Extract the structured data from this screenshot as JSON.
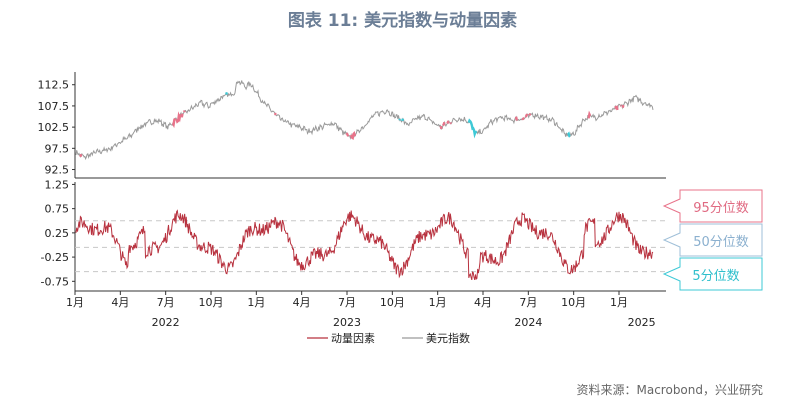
{
  "title": "图表 11: 美元指数与动量因素",
  "source": "资料来源：Macrobond，兴业研究",
  "colors": {
    "title": "#6b7e96",
    "dxy_line": "#9a9a9a",
    "momentum_line": "#b8323f",
    "high_band": "#e8738a",
    "low_band": "#3ec9d6",
    "mid_band": "#9fbfd8"
  },
  "chart_data": [
    {
      "type": "line",
      "series": [
        {
          "name": "美元指数"
        }
      ],
      "ylim": [
        90.5,
        115.5
      ],
      "yticks": [
        "112.5",
        "107.5",
        "102.5",
        "97.5",
        "92.5"
      ],
      "anchors": [
        [
          0,
          96.5
        ],
        [
          0.02,
          95.4
        ],
        [
          0.05,
          96.6
        ],
        [
          0.08,
          97.3
        ],
        [
          0.1,
          98.6
        ],
        [
          0.13,
          100.3
        ],
        [
          0.15,
          102.3
        ],
        [
          0.18,
          103.8
        ],
        [
          0.2,
          104.0
        ],
        [
          0.22,
          102.5
        ],
        [
          0.25,
          105.0
        ],
        [
          0.28,
          107.0
        ],
        [
          0.3,
          108.2
        ],
        [
          0.32,
          107.5
        ],
        [
          0.35,
          109.5
        ],
        [
          0.38,
          110.5
        ],
        [
          0.39,
          113.5
        ],
        [
          0.41,
          112.0
        ],
        [
          0.42,
          112.8
        ],
        [
          0.45,
          108.5
        ],
        [
          0.47,
          106.5
        ],
        [
          0.49,
          104.5
        ],
        [
          0.52,
          103.0
        ],
        [
          0.54,
          102.5
        ],
        [
          0.56,
          101.5
        ],
        [
          0.59,
          102.5
        ],
        [
          0.62,
          103.5
        ],
        [
          0.64,
          101.5
        ],
        [
          0.66,
          100.0
        ],
        [
          0.68,
          101.5
        ],
        [
          0.7,
          103.5
        ],
        [
          0.72,
          105.5
        ],
        [
          0.75,
          106.5
        ],
        [
          0.76,
          105.5
        ],
        [
          0.78,
          104.5
        ],
        [
          0.8,
          103.0
        ],
        [
          0.82,
          104.5
        ],
        [
          0.84,
          105.0
        ],
        [
          0.86,
          103.5
        ],
        [
          0.88,
          102.5
        ],
        [
          0.9,
          103.8
        ],
        [
          0.92,
          104.5
        ],
        [
          0.94,
          104.2
        ],
        [
          0.95,
          103.5
        ],
        [
          0.96,
          101.0
        ],
        [
          0.98,
          101.5
        ],
        [
          1.0,
          103.8
        ]
      ],
      "tail": [
        [
          0,
          103.8
        ],
        [
          0.1,
          104.8
        ],
        [
          0.2,
          104.2
        ],
        [
          0.3,
          104.5
        ],
        [
          0.4,
          105.5
        ],
        [
          0.5,
          104.8
        ],
        [
          0.6,
          104.0
        ],
        [
          0.65,
          102.5
        ],
        [
          0.7,
          101.0
        ],
        [
          0.75,
          100.5
        ],
        [
          0.8,
          101.0
        ],
        [
          0.85,
          103.0
        ],
        [
          0.9,
          104.5
        ],
        [
          0.95,
          105.0
        ],
        [
          1.0,
          104.8
        ]
      ],
      "tail2": [
        [
          0,
          104.8
        ],
        [
          0.3,
          106.5
        ],
        [
          0.5,
          107.8
        ],
        [
          0.7,
          109.5
        ],
        [
          0.8,
          108.5
        ],
        [
          0.9,
          108.0
        ],
        [
          1.0,
          107.2
        ]
      ]
    },
    {
      "type": "line",
      "series": [
        {
          "name": "动量因素"
        }
      ],
      "ylim": [
        -0.95,
        1.3
      ],
      "yticks": [
        "1.25",
        "0.75",
        "0.25",
        "-0.25",
        "-0.75"
      ],
      "percentile_lines": {
        "p95": 0.5,
        "p50": -0.05,
        "p5": -0.55
      },
      "band_labels": [
        "95分位数",
        "50分位数",
        "5分位数"
      ]
    }
  ],
  "x_axis": {
    "month_ticks": [
      "1月",
      "4月",
      "7月",
      "10月",
      "1月",
      "4月",
      "7月",
      "10月",
      "1月",
      "4月",
      "7月",
      "10月",
      "1月"
    ],
    "years": [
      "2022",
      "2023",
      "2024",
      "2025"
    ]
  }
}
